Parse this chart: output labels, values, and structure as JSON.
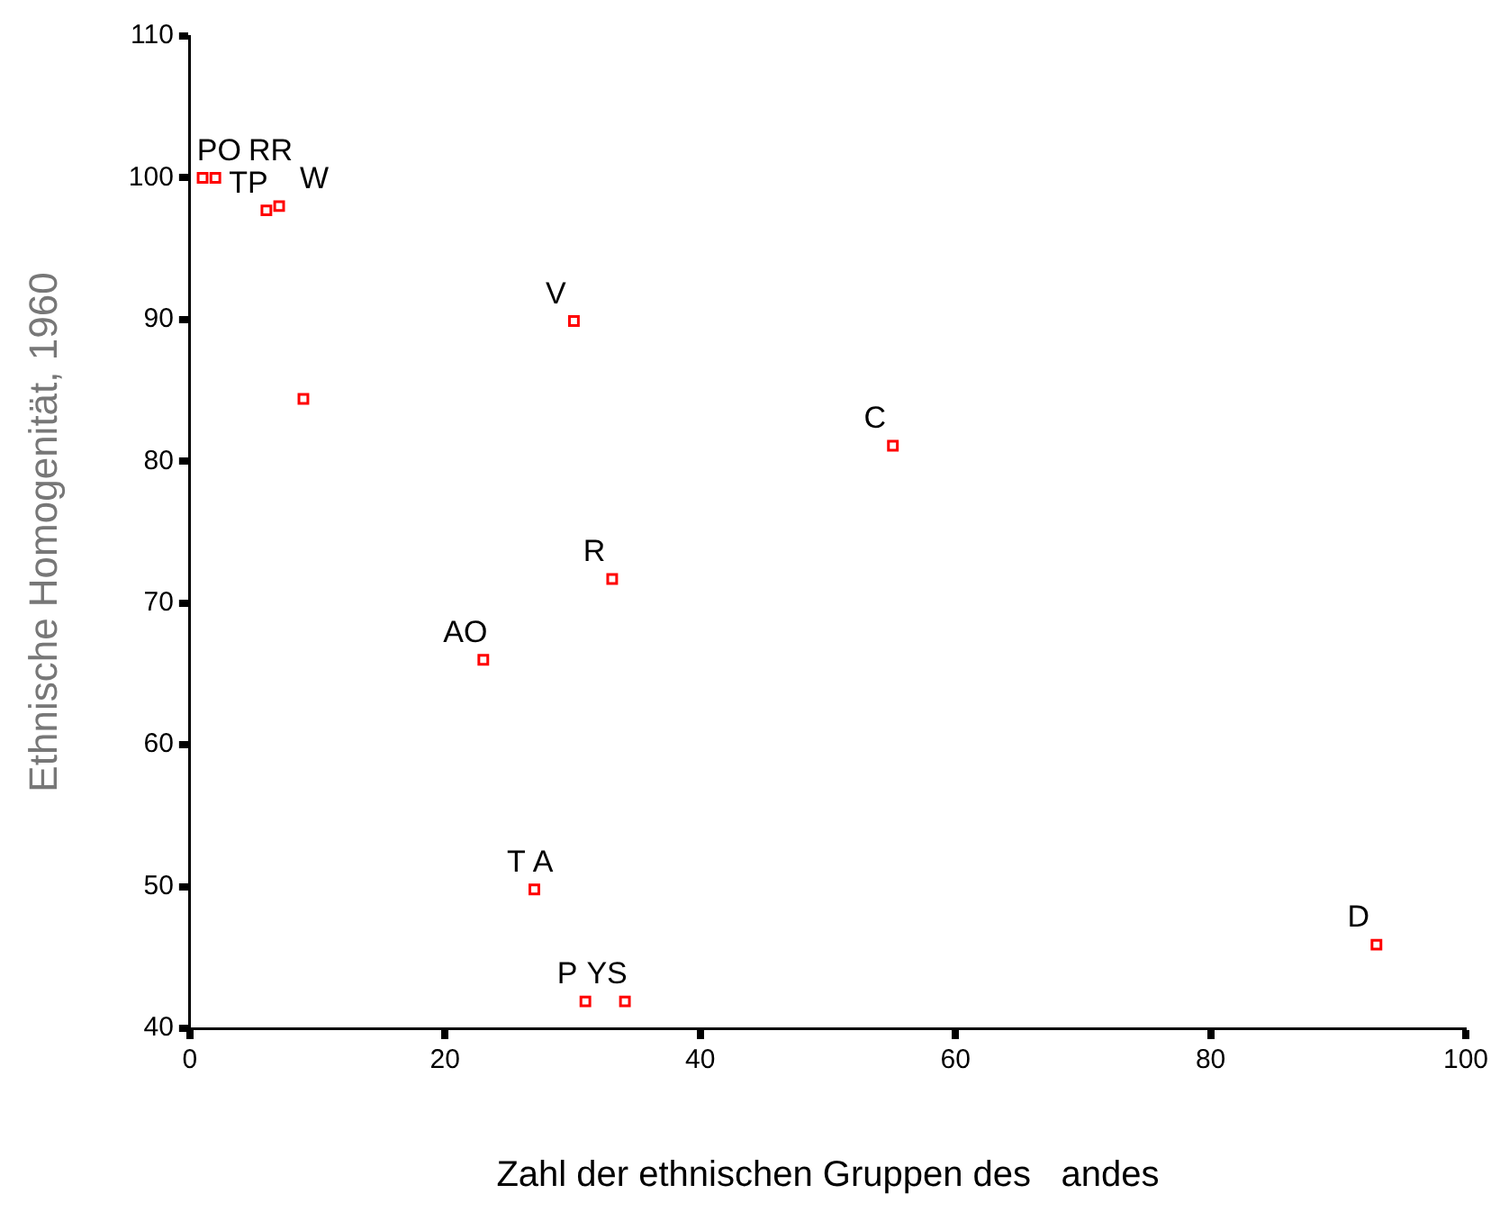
{
  "chart_data": {
    "type": "scatter",
    "xlabel": "Zahl der ethnischen Gruppen des   andes",
    "ylabel": "Ethnische Homogenität, 1960",
    "x": [
      1,
      2,
      6,
      7,
      8.9,
      30.1,
      55.1,
      33.1,
      23,
      27,
      31,
      34.1,
      93
    ],
    "series": [
      {
        "color": "#ff0000",
        "values": [
          100,
          100,
          97.7,
          98,
          84.4,
          89.9,
          81.1,
          71.7,
          66,
          49.8,
          41.9,
          41.9,
          45.9
        ]
      }
    ],
    "annotations": [
      {
        "text": "PO",
        "x": 1,
        "y": 100
      },
      {
        "text": "RR",
        "x": 2,
        "y": 100
      },
      {
        "text": "TP",
        "x": 6,
        "y": 97.7
      },
      {
        "text": "W",
        "x": 7,
        "y": 98
      },
      {
        "text": "V",
        "x": 30.1,
        "y": 89.9
      },
      {
        "text": "C",
        "x": 55.1,
        "y": 81.1
      },
      {
        "text": "R",
        "x": 33.1,
        "y": 71.7
      },
      {
        "text": "AO",
        "x": 23,
        "y": 66
      },
      {
        "text": "T",
        "x": 27,
        "y": 49.8
      },
      {
        "text": "A",
        "x": 27,
        "y": 49.8
      },
      {
        "text": "P",
        "x": 31,
        "y": 41.9
      },
      {
        "text": "YS",
        "x": 34.1,
        "y": 41.9
      },
      {
        "text": "D",
        "x": 93,
        "y": 45.9
      }
    ],
    "xlim": [
      0,
      100
    ],
    "xticks": [
      0,
      20,
      40,
      60,
      80,
      100
    ],
    "ylim": [
      40,
      110
    ],
    "yticks": [
      40,
      50,
      60,
      70,
      80,
      90,
      100,
      110
    ],
    "grid": false,
    "legend": false,
    "marker": "square"
  }
}
